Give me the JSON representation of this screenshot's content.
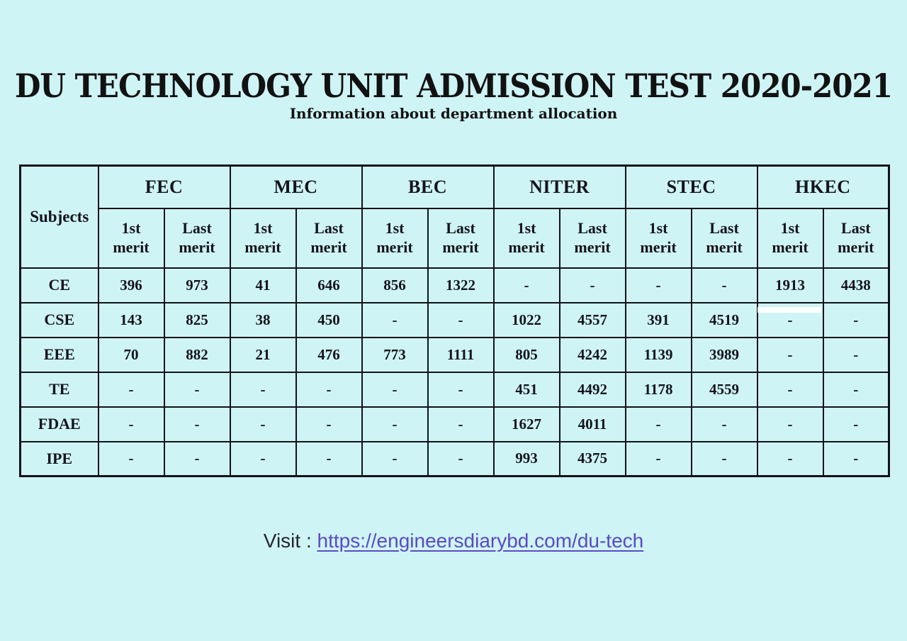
{
  "page": {
    "bg_color": "#cff4f5",
    "title": "DU TECHNOLOGY UNIT ADMISSION TEST 2020-2021",
    "subtitle": "Information about department allocation"
  },
  "table": {
    "border_color": "#101318",
    "subjects_header": "Subjects",
    "colleges": [
      "FEC",
      "MEC",
      "BEC",
      "NITER",
      "STEC",
      "HKEC"
    ],
    "merit_headers": [
      "1st merit",
      "Last merit"
    ],
    "rows": [
      {
        "subject": "CE",
        "values": [
          "396",
          "973",
          "41",
          "646",
          "856",
          "1322",
          "-",
          "-",
          "-",
          "-",
          "1913",
          "4438"
        ]
      },
      {
        "subject": "CSE",
        "values": [
          "143",
          "825",
          "38",
          "450",
          "-",
          "-",
          "1022",
          "4557",
          "391",
          "4519",
          "-",
          "-"
        ]
      },
      {
        "subject": "EEE",
        "values": [
          "70",
          "882",
          "21",
          "476",
          "773",
          "1111",
          "805",
          "4242",
          "1139",
          "3989",
          "-",
          "-"
        ]
      },
      {
        "subject": "TE",
        "values": [
          "-",
          "-",
          "-",
          "-",
          "-",
          "-",
          "451",
          "4492",
          "1178",
          "4559",
          "-",
          "-"
        ]
      },
      {
        "subject": "FDAE",
        "values": [
          "-",
          "-",
          "-",
          "-",
          "-",
          "-",
          "1627",
          "4011",
          "-",
          "-",
          "-",
          "-"
        ]
      },
      {
        "subject": "IPE",
        "values": [
          "-",
          "-",
          "-",
          "-",
          "-",
          "-",
          "993",
          "4375",
          "-",
          "-",
          "-",
          "-"
        ]
      }
    ]
  },
  "footer": {
    "visit_label": "Visit :",
    "link_text": "https://engineersdiarybd.com/du-tech",
    "link_color": "#5a4ac5"
  }
}
